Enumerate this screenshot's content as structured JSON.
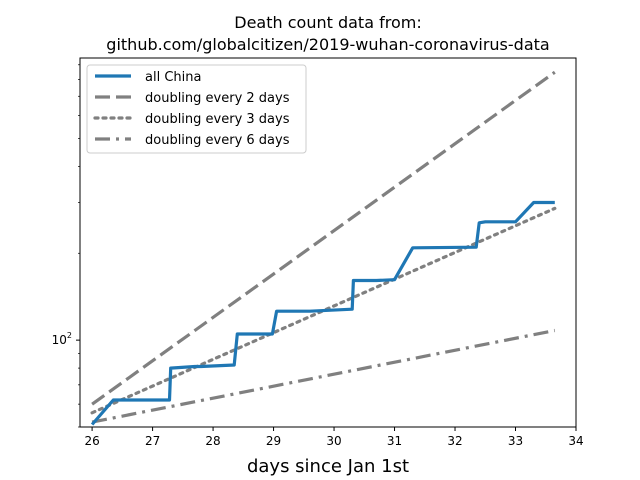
{
  "chart_data": {
    "type": "line",
    "title_lines": [
      "Death count data from:",
      "github.com/globalcitizen/2019-wuhan-coronavirus-data"
    ],
    "xlabel": "days since Jan 1st",
    "ylabel": "",
    "xlim": [
      25.8,
      34.0
    ],
    "ylim": [
      50,
      950
    ],
    "yscale": "log",
    "x_ticks": [
      26,
      27,
      28,
      29,
      30,
      31,
      32,
      33,
      34
    ],
    "y_ticks": [
      {
        "value": 100,
        "label": "10",
        "exp": "2"
      }
    ],
    "grid": false,
    "legend": "top-left",
    "series": [
      {
        "name": "all China",
        "style": "solid",
        "color": "#1f77b4",
        "x": [
          26.0,
          26.35,
          26.45,
          27.28,
          27.3,
          27.7,
          27.8,
          28.35,
          28.4,
          28.98,
          29.05,
          29.3,
          29.6,
          30.3,
          30.32,
          30.7,
          31.0,
          31.3,
          32.35,
          32.4,
          32.5,
          33.0,
          33.3,
          33.65
        ],
        "y": [
          51,
          62,
          62,
          62,
          80,
          81,
          81,
          82,
          105,
          105,
          126,
          126,
          126,
          128,
          161,
          161,
          162,
          209,
          210,
          255,
          257,
          257,
          300,
          300
        ]
      },
      {
        "name": "doubling every 2 days",
        "style": "dashed",
        "color": "#808080",
        "x": [
          26.0,
          33.65
        ],
        "y": [
          60.0,
          848.0
        ]
      },
      {
        "name": "doubling every 3 days",
        "style": "dotted",
        "color": "#808080",
        "x": [
          26.0,
          33.65
        ],
        "y": [
          56.0,
          286.0
        ]
      },
      {
        "name": "doubling every 6 days",
        "style": "dashdot",
        "color": "#808080",
        "x": [
          26.0,
          33.65
        ],
        "y": [
          52.0,
          108.0
        ]
      }
    ]
  }
}
